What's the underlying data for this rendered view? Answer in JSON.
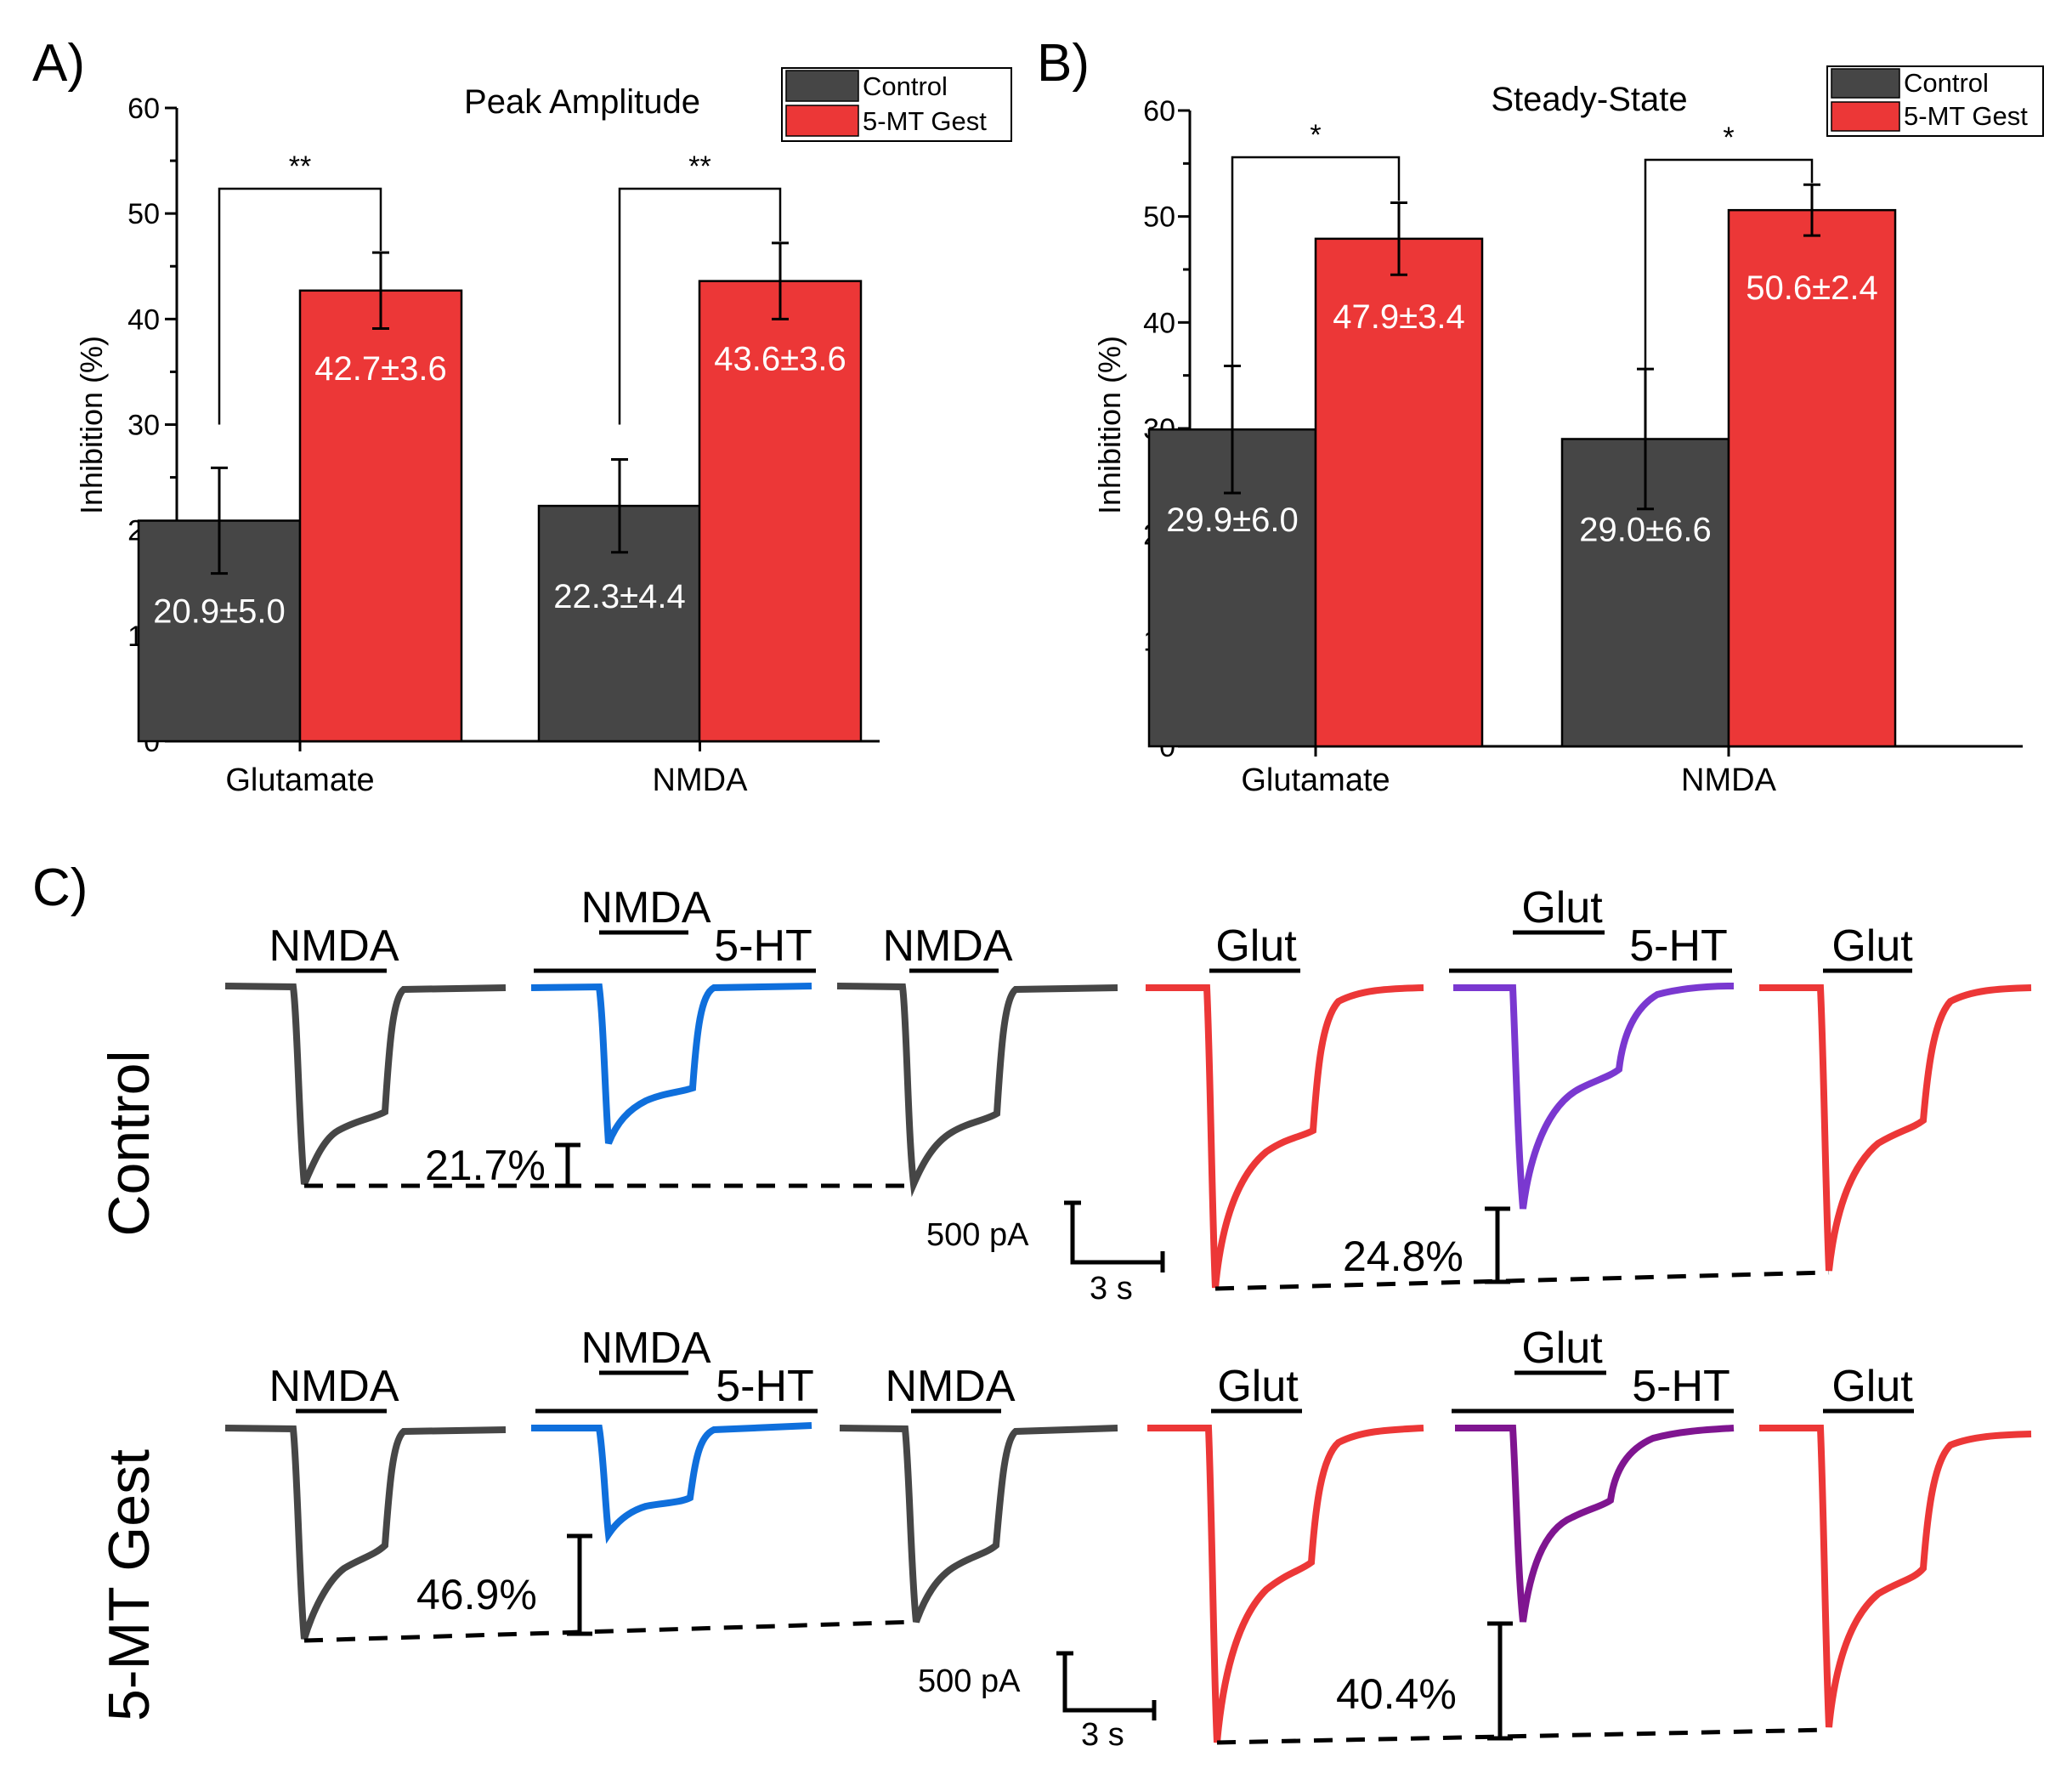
{
  "colors": {
    "control": "#464646",
    "gest": "#ec3737",
    "nmda_trace": "#464646",
    "nmda_5ht_trace": "#0f6fdc",
    "glut_trace": "#ec3737",
    "glut_5ht_control": "#7a38d0",
    "glut_5ht_gest": "#7f1590"
  },
  "chart_data": [
    {
      "panel": "A)",
      "type": "bar",
      "title": "Peak Amplitude",
      "ylabel": "Inhibition (%)",
      "xlabel": "",
      "ylim": [
        0,
        60
      ],
      "yticks": [
        "0",
        "10",
        "20",
        "30",
        "40",
        "50",
        "60"
      ],
      "categories": [
        "Glutamate",
        "NMDA"
      ],
      "legend": {
        "placement": "top-right",
        "entries": [
          "Control",
          "5-MT Gest"
        ]
      },
      "series": [
        {
          "name": "Control",
          "values": [
            20.9,
            22.3
          ],
          "errors": [
            5.0,
            4.4
          ],
          "labels": [
            "20.9±5.0",
            "22.3±4.4"
          ]
        },
        {
          "name": "5-MT Gest",
          "values": [
            42.7,
            43.6
          ],
          "errors": [
            3.6,
            3.6
          ],
          "labels": [
            "42.7±3.6",
            "43.6±3.6"
          ]
        }
      ],
      "significance": [
        "**",
        "**"
      ]
    },
    {
      "panel": "B)",
      "type": "bar",
      "title": "Steady-State",
      "ylabel": "Inhibition (%)",
      "xlabel": "",
      "ylim": [
        0,
        60
      ],
      "yticks": [
        "0",
        "10",
        "20",
        "30",
        "40",
        "50",
        "60"
      ],
      "categories": [
        "Glutamate",
        "NMDA"
      ],
      "legend": {
        "placement": "top-right",
        "entries": [
          "Control",
          "5-MT Gest"
        ]
      },
      "series": [
        {
          "name": "Control",
          "values": [
            29.9,
            29.0
          ],
          "errors": [
            6.0,
            6.6
          ],
          "labels": [
            "29.9±6.0",
            "29.0±6.6"
          ]
        },
        {
          "name": "5-MT Gest",
          "values": [
            47.9,
            50.6
          ],
          "errors": [
            3.4,
            2.4
          ],
          "labels": [
            "47.9±3.4",
            "50.6±2.4"
          ]
        }
      ],
      "significance": [
        "*",
        "*"
      ]
    }
  ],
  "traces": {
    "panel": "C)",
    "rows": [
      {
        "label": "Control",
        "conditions": [
          {
            "label": "NMDA"
          },
          {
            "label": "NMDA",
            "drug": "5-HT"
          },
          {
            "label": "NMDA"
          },
          {
            "label": "Glut"
          },
          {
            "label": "Glut",
            "drug": "5-HT"
          },
          {
            "label": "Glut"
          }
        ],
        "inhibition": [
          "21.7%",
          "24.8%"
        ],
        "scalebar": {
          "current": "500 pA",
          "time": "3 s"
        }
      },
      {
        "label": "5-MT Gest",
        "conditions": [
          {
            "label": "NMDA"
          },
          {
            "label": "NMDA",
            "drug": "5-HT"
          },
          {
            "label": "NMDA"
          },
          {
            "label": "Glut"
          },
          {
            "label": "Glut",
            "drug": "5-HT"
          },
          {
            "label": "Glut"
          }
        ],
        "inhibition": [
          "46.9%",
          "40.4%"
        ],
        "scalebar": {
          "current": "500 pA",
          "time": "3 s"
        }
      }
    ]
  }
}
